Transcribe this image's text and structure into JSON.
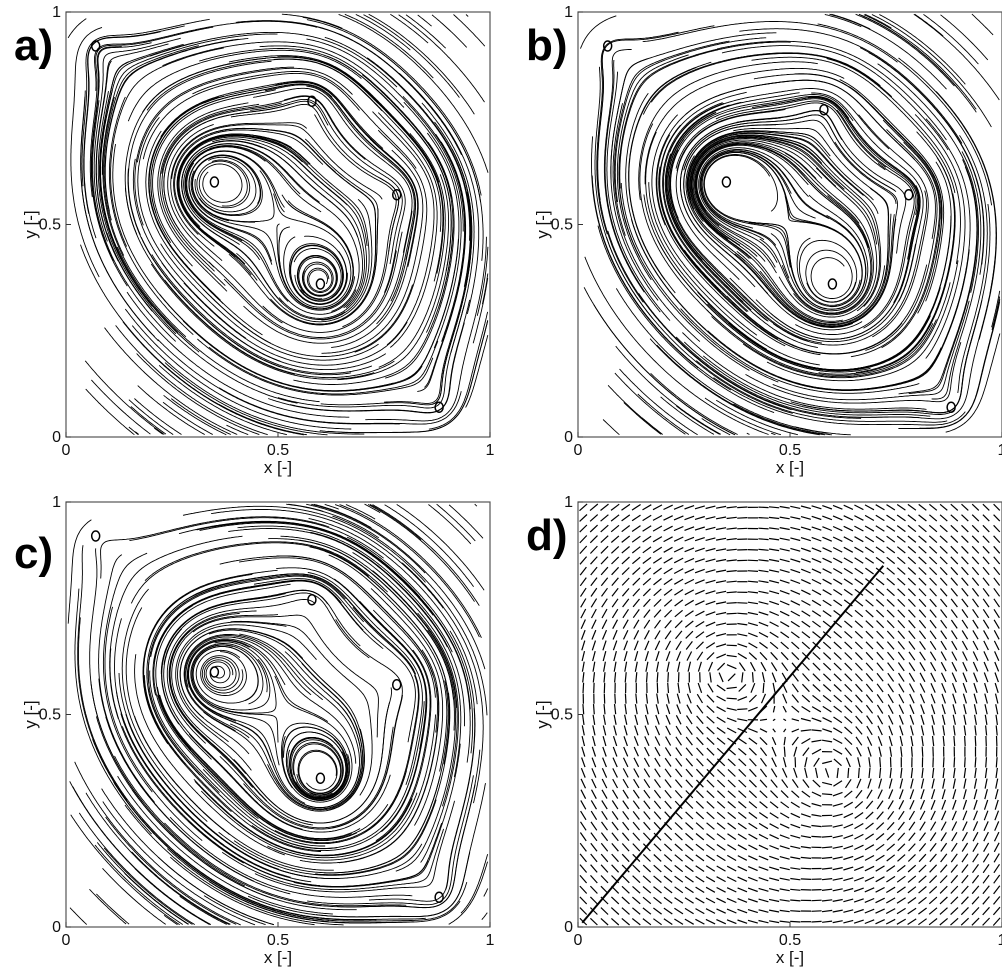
{
  "figure": {
    "panels": [
      {
        "label": "a)",
        "kind": "streamlines"
      },
      {
        "label": "b)",
        "kind": "streamlines"
      },
      {
        "label": "c)",
        "kind": "streamlines"
      },
      {
        "label": "d)",
        "kind": "vectors"
      }
    ]
  },
  "chart_data": [
    {
      "type": "scatter",
      "subtype": "streamline",
      "panel": "a)",
      "xlabel": "x [-]",
      "ylabel": "y [-]",
      "xlim": [
        0,
        1
      ],
      "ylim": [
        0,
        1
      ],
      "x_ticks": [
        "0",
        "0.5",
        "1"
      ],
      "y_ticks": [
        "0",
        "0.5",
        "1"
      ],
      "grid": false,
      "line_color": "#000000",
      "vortex_centers": [
        {
          "x": 0.35,
          "y": 0.6
        },
        {
          "x": 0.6,
          "y": 0.36
        },
        {
          "x": 0.07,
          "y": 0.92
        },
        {
          "x": 0.88,
          "y": 0.07
        },
        {
          "x": 0.58,
          "y": 0.79
        },
        {
          "x": 0.78,
          "y": 0.57
        }
      ]
    },
    {
      "type": "scatter",
      "subtype": "streamline",
      "panel": "b)",
      "xlabel": "x [-]",
      "ylabel": "y [-]",
      "xlim": [
        0,
        1
      ],
      "ylim": [
        0,
        1
      ],
      "x_ticks": [
        "0",
        "0.5",
        "1"
      ],
      "y_ticks": [
        "0",
        "0.5",
        "1"
      ],
      "grid": false,
      "line_color": "#000000",
      "vortex_centers": [
        {
          "x": 0.35,
          "y": 0.6
        },
        {
          "x": 0.6,
          "y": 0.36
        },
        {
          "x": 0.07,
          "y": 0.92
        },
        {
          "x": 0.88,
          "y": 0.07
        },
        {
          "x": 0.58,
          "y": 0.77
        },
        {
          "x": 0.78,
          "y": 0.57
        }
      ]
    },
    {
      "type": "scatter",
      "subtype": "streamline",
      "panel": "c)",
      "xlabel": "x [-]",
      "ylabel": "y [-]",
      "xlim": [
        0,
        1
      ],
      "ylim": [
        0,
        1
      ],
      "x_ticks": [
        "0",
        "0.5",
        "1"
      ],
      "y_ticks": [
        "0",
        "0.5",
        "1"
      ],
      "grid": false,
      "line_color": "#000000",
      "vortex_centers": [
        {
          "x": 0.35,
          "y": 0.6
        },
        {
          "x": 0.6,
          "y": 0.35
        },
        {
          "x": 0.07,
          "y": 0.92
        },
        {
          "x": 0.88,
          "y": 0.07
        },
        {
          "x": 0.58,
          "y": 0.77
        },
        {
          "x": 0.78,
          "y": 0.57
        }
      ]
    },
    {
      "type": "scatter",
      "subtype": "vector",
      "panel": "d)",
      "xlabel": "x [-]",
      "ylabel": "y [-]",
      "xlim": [
        0,
        1
      ],
      "ylim": [
        0,
        1
      ],
      "x_ticks": [
        "0",
        "0.5",
        "1"
      ],
      "y_ticks": [
        "0",
        "0.5",
        "1"
      ],
      "grid": false,
      "line_color": "#000000",
      "vortex_centers": [
        {
          "x": 0.35,
          "y": 0.6
        },
        {
          "x": 0.6,
          "y": 0.36
        }
      ]
    }
  ]
}
